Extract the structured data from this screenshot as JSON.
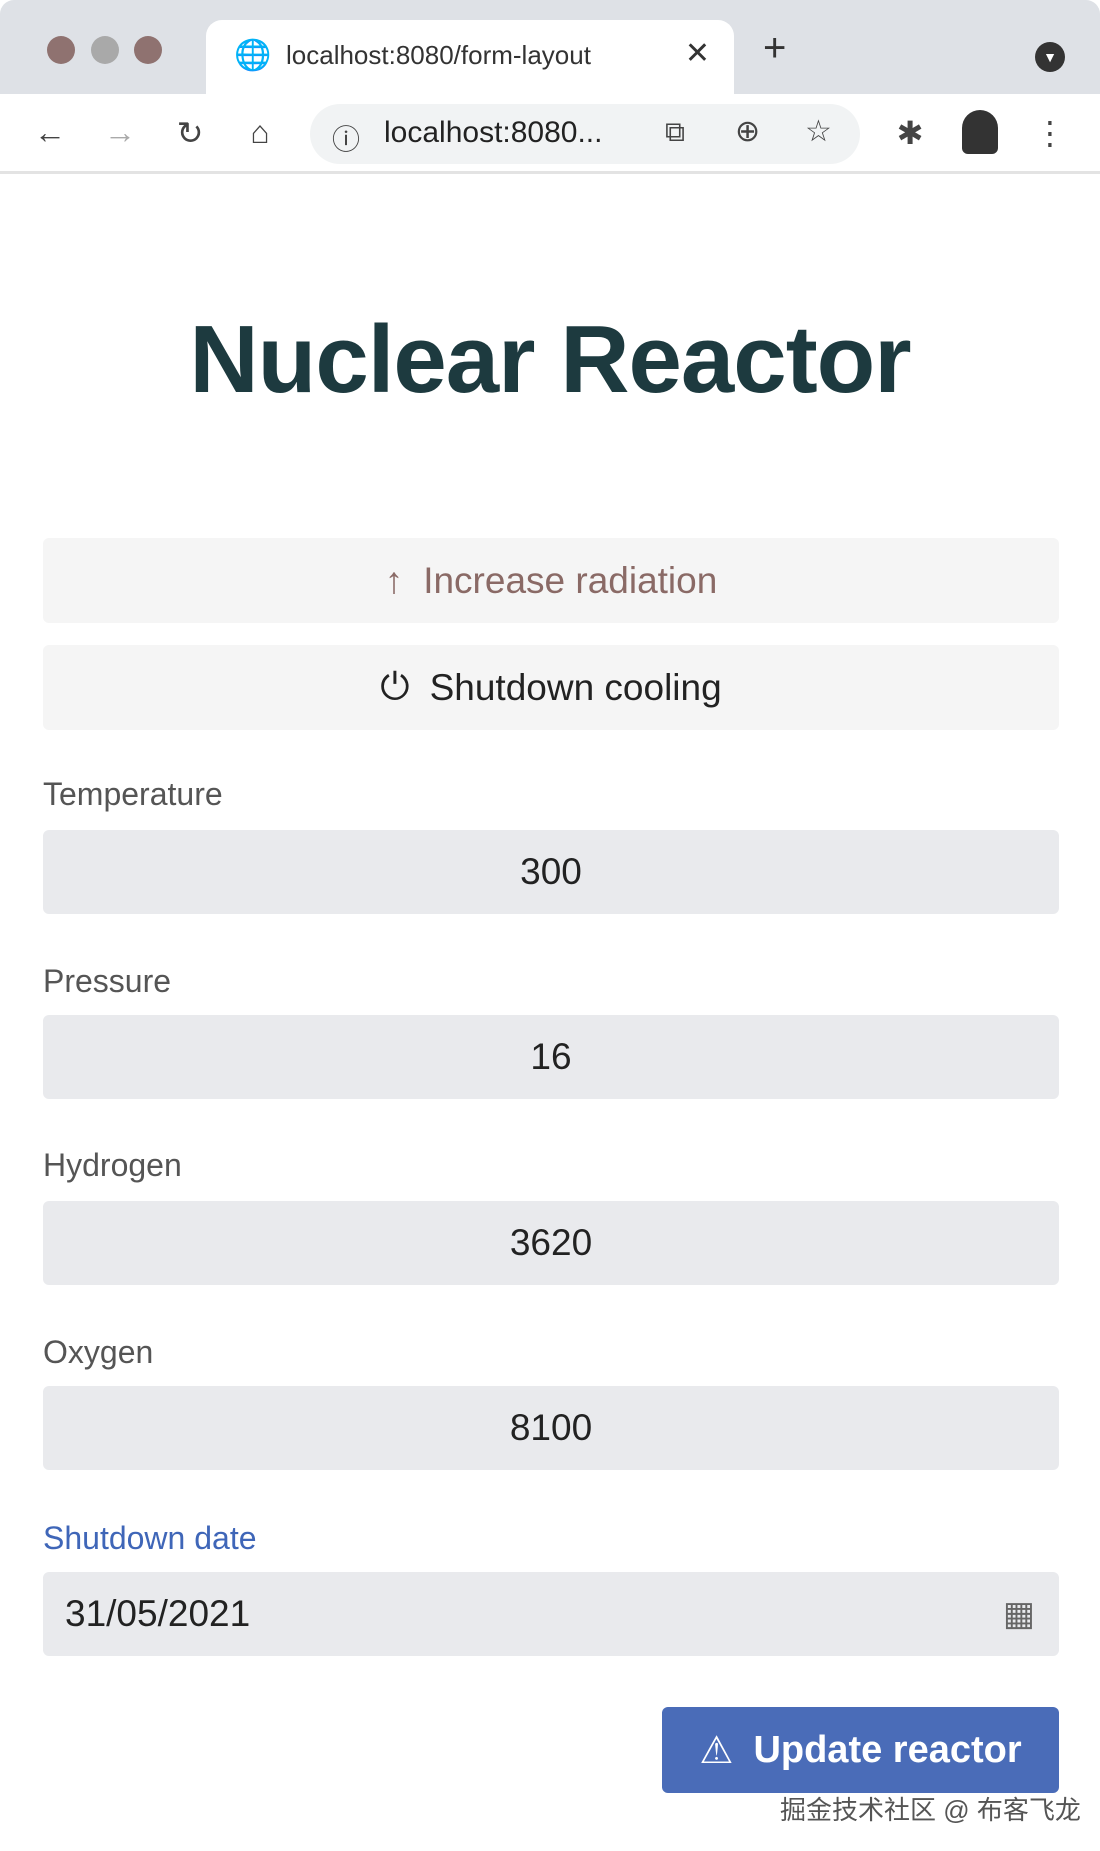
{
  "browser": {
    "tab_title": "localhost:8080/form-layout",
    "url": "localhost:8080...",
    "traffic_colors": [
      "#8f7270",
      "#a9a9a9",
      "#8f7270"
    ]
  },
  "page": {
    "title": "Nuclear Reactor"
  },
  "actions": {
    "increase_label": "Increase radiation",
    "shutdown_label": "Shutdown cooling",
    "update_label": "Update reactor"
  },
  "fields": [
    {
      "label": "Temperature",
      "value": "300"
    },
    {
      "label": "Pressure",
      "value": "16"
    },
    {
      "label": "Hydrogen",
      "value": "3620"
    },
    {
      "label": "Oxygen",
      "value": "8100"
    }
  ],
  "date": {
    "label": "Shutdown date",
    "value": "31/05/2021"
  },
  "watermark": "掘金技术社区 @ 布客飞龙",
  "colors": {
    "accent": "#4a6cb8",
    "title": "#1d3a3f",
    "date_label": "#3f66b8"
  }
}
